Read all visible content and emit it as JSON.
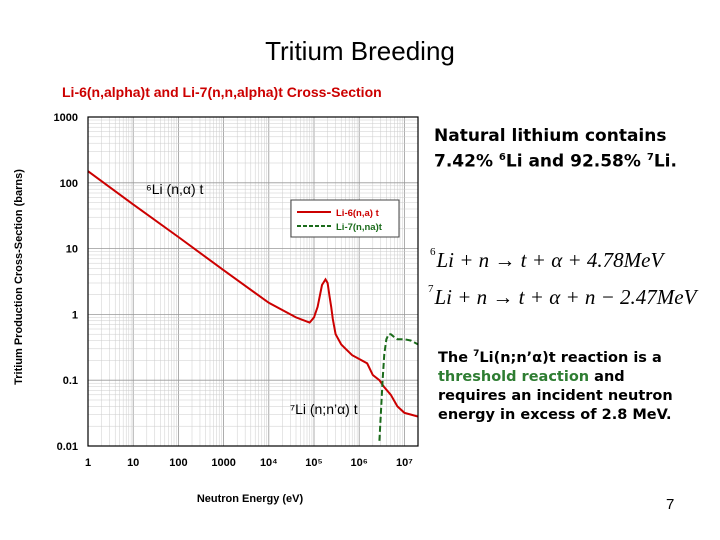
{
  "slide": {
    "title": "Tritium Breeding",
    "page_number": "7"
  },
  "notes": {
    "natural_lithium_line1": "Natural lithium contains",
    "natural_lithium_line2_pre": "7.42% ",
    "natural_lithium_li6_mass": "6",
    "natural_lithium_line2_mid": "Li and 92.58% ",
    "natural_lithium_li7_mass": "7",
    "natural_lithium_line2_post": "Li.",
    "threshold_pre": "The ",
    "threshold_mass": "7",
    "threshold_reaction": "Li(n;n’α)t reaction is a",
    "threshold_green": "threshold reaction",
    "threshold_rest1": " and",
    "threshold_rest2": "requires an incident neutron",
    "threshold_rest3": "energy in excess of 2.8 MeV."
  },
  "equations": {
    "eq1_mass": "6",
    "eq1_text": "Li + n → t + α + 4.78MeV",
    "eq2_mass": "7",
    "eq2_text": "Li + n → t + α + n − 2.47MeV"
  },
  "chart_data": {
    "type": "line",
    "title": "Li-6(n,alpha)t and Li-7(n,n,alpha)t Cross-Section",
    "xlabel": "Neutron Energy (eV)",
    "ylabel": "Tritium Production Cross-Section (barns)",
    "x_scale": "log",
    "y_scale": "log",
    "xlim": [
      1,
      20000000
    ],
    "ylim": [
      0.01,
      1000
    ],
    "x_ticks": [
      "1",
      "10",
      "100",
      "1000",
      "10⁴",
      "10⁵",
      "10⁶",
      "10⁷"
    ],
    "y_ticks": [
      "1000",
      "100",
      "10",
      "1",
      "0.1",
      "0.01"
    ],
    "grid": true,
    "legend_position": "center",
    "annotations": [
      {
        "text": "⁶Li (n,α) t",
        "series": "Li-6(n,a) t"
      },
      {
        "text": "⁷Li (n;n’α) t",
        "series": "Li-7(n,na)t"
      }
    ],
    "colors": {
      "li6": "#cc0000",
      "li7": "#1a6b1a",
      "title": "#cc0000"
    },
    "series": [
      {
        "name": "Li-6(n,a) t",
        "style": "solid",
        "x": [
          1,
          10,
          100,
          1000,
          10000,
          40000,
          80000,
          100000,
          120000,
          150000,
          180000,
          200000,
          220000,
          240000,
          260000,
          300000,
          400000,
          500000,
          700000,
          1000000,
          1500000,
          2000000,
          2800000,
          3500000,
          5000000,
          7000000,
          10000000,
          14000000,
          20000000
        ],
        "y": [
          150,
          47,
          15,
          4.7,
          1.5,
          0.9,
          0.75,
          0.9,
          1.3,
          2.8,
          3.4,
          3.0,
          1.9,
          1.3,
          0.85,
          0.5,
          0.35,
          0.3,
          0.24,
          0.21,
          0.18,
          0.12,
          0.1,
          0.08,
          0.06,
          0.04,
          0.032,
          0.03,
          0.028
        ]
      },
      {
        "name": "Li-7(n,na)t",
        "style": "dashed",
        "x": [
          2800000,
          3000000,
          3300000,
          3600000,
          4000000,
          4500000,
          5000000,
          6000000,
          7000000,
          10000000,
          14000000,
          20000000
        ],
        "y": [
          0.012,
          0.03,
          0.1,
          0.25,
          0.42,
          0.5,
          0.5,
          0.45,
          0.42,
          0.42,
          0.4,
          0.35
        ]
      }
    ]
  }
}
